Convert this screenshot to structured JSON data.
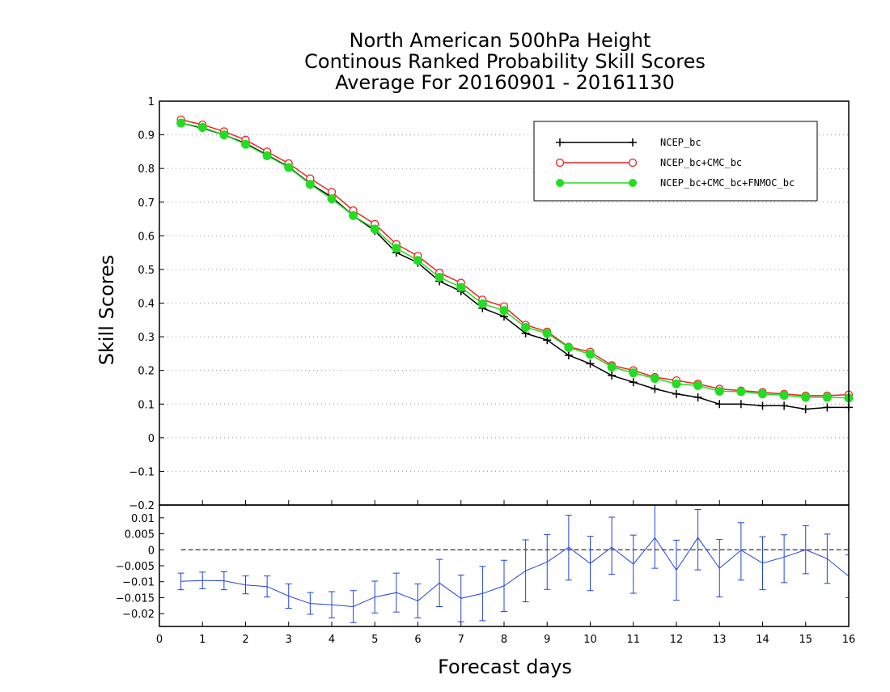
{
  "chart_data": {
    "type": "line",
    "title": [
      "North American 500hPa Height",
      "Continous Ranked Probability Skill Scores",
      "Average For 20160901 - 20161130"
    ],
    "xlabel": "Forecast days",
    "ylabel": "Skill Scores",
    "xlim": [
      0,
      16
    ],
    "xticks": [
      "0",
      "1",
      "2",
      "3",
      "4",
      "5",
      "6",
      "7",
      "8",
      "9",
      "10",
      "11",
      "12",
      "13",
      "14",
      "15",
      "16"
    ],
    "top_panel": {
      "ylim": [
        -0.2,
        1.0
      ],
      "yticks": [
        "−0.2",
        "−0.1",
        "0",
        "0.1",
        "0.2",
        "0.3",
        "0.4",
        "0.5",
        "0.6",
        "0.7",
        "0.8",
        "0.9",
        "1"
      ],
      "grid": true,
      "legend_position": "top-right",
      "x": [
        0.5,
        1.0,
        1.5,
        2.0,
        2.5,
        3.0,
        3.5,
        4.0,
        4.5,
        5.0,
        5.5,
        6.0,
        6.5,
        7.0,
        7.5,
        8.0,
        8.5,
        9.0,
        9.5,
        10.0,
        10.5,
        11.0,
        11.5,
        12.0,
        12.5,
        13.0,
        13.5,
        14.0,
        14.5,
        15.0,
        15.5,
        16.0
      ],
      "series": [
        {
          "name": "NCEP_bc",
          "color": "#000000",
          "marker": "plus",
          "values": [
            0.935,
            0.92,
            0.9,
            0.875,
            0.84,
            0.805,
            0.755,
            0.715,
            0.66,
            0.615,
            0.55,
            0.52,
            0.465,
            0.435,
            0.385,
            0.36,
            0.31,
            0.29,
            0.245,
            0.22,
            0.185,
            0.165,
            0.145,
            0.13,
            0.12,
            0.1,
            0.1,
            0.095,
            0.095,
            0.085,
            0.09,
            0.09
          ]
        },
        {
          "name": "NCEP_bc+CMC_bc",
          "color": "#ee2222",
          "marker": "open-circle",
          "values": [
            0.945,
            0.93,
            0.91,
            0.885,
            0.85,
            0.815,
            0.77,
            0.73,
            0.675,
            0.635,
            0.575,
            0.54,
            0.49,
            0.46,
            0.41,
            0.39,
            0.335,
            0.315,
            0.27,
            0.255,
            0.215,
            0.2,
            0.18,
            0.17,
            0.16,
            0.145,
            0.14,
            0.135,
            0.13,
            0.125,
            0.125,
            0.128
          ]
        },
        {
          "name": "NCEP_bc+CMC_bc+FNMOC_bc",
          "color": "#22dd22",
          "marker": "filled-circle",
          "values": [
            0.935,
            0.922,
            0.9,
            0.872,
            0.838,
            0.803,
            0.753,
            0.71,
            0.66,
            0.62,
            0.563,
            0.527,
            0.477,
            0.447,
            0.398,
            0.378,
            0.328,
            0.31,
            0.268,
            0.248,
            0.21,
            0.193,
            0.176,
            0.16,
            0.155,
            0.138,
            0.137,
            0.13,
            0.126,
            0.12,
            0.12,
            0.118
          ]
        }
      ]
    },
    "bottom_panel": {
      "ylim": [
        -0.024,
        0.014
      ],
      "yticks": [
        "−0.02",
        "−0.015",
        "−0.01",
        "−0.005",
        "0",
        "0.005",
        "0.01"
      ],
      "zero_line": "dashed",
      "x": [
        0.5,
        1.0,
        1.5,
        2.0,
        2.5,
        3.0,
        3.5,
        4.0,
        4.5,
        5.0,
        5.5,
        6.0,
        6.5,
        7.0,
        7.5,
        8.0,
        8.5,
        9.0,
        9.5,
        10.0,
        10.5,
        11.0,
        11.5,
        12.0,
        12.5,
        13.0,
        13.5,
        14.0,
        14.5,
        15.0,
        15.5,
        16.0
      ],
      "series": [
        {
          "color": "#2244dd",
          "values": [
            -0.0099,
            -0.0096,
            -0.0097,
            -0.011,
            -0.0115,
            -0.0145,
            -0.0168,
            -0.0172,
            -0.0178,
            -0.0148,
            -0.0134,
            -0.016,
            -0.0104,
            -0.0152,
            -0.0137,
            -0.0113,
            -0.0066,
            -0.0038,
            0.0008,
            -0.0043,
            0.0008,
            -0.0045,
            0.0038,
            -0.0064,
            0.0038,
            -0.0058,
            -0.0001,
            -0.0042,
            -0.0023,
            0.0,
            -0.0028,
            -0.0083
          ],
          "error_low": [
            -0.0125,
            -0.0122,
            -0.0125,
            -0.0138,
            -0.0148,
            -0.0183,
            -0.0202,
            -0.0213,
            -0.0228,
            -0.0198,
            -0.0195,
            -0.0213,
            -0.0178,
            -0.0225,
            -0.0222,
            -0.0193,
            -0.0163,
            -0.0124,
            -0.0095,
            -0.0128,
            -0.0077,
            -0.0136,
            -0.0058,
            -0.0158,
            -0.0063,
            -0.0148,
            -0.0095,
            -0.0125,
            -0.0103,
            -0.0075,
            -0.0105,
            -0.015
          ],
          "error_high": [
            -0.0073,
            -0.007,
            -0.0069,
            -0.0082,
            -0.0082,
            -0.0107,
            -0.0134,
            -0.0131,
            -0.0128,
            -0.0098,
            -0.0073,
            -0.0107,
            -0.003,
            -0.0079,
            -0.0052,
            -0.0033,
            0.0031,
            0.0048,
            0.0108,
            0.0042,
            0.0102,
            0.0046,
            0.014,
            0.003,
            0.0126,
            0.0032,
            0.0085,
            0.0041,
            0.0047,
            0.0075,
            0.0049,
            -0.0016
          ]
        }
      ]
    }
  }
}
